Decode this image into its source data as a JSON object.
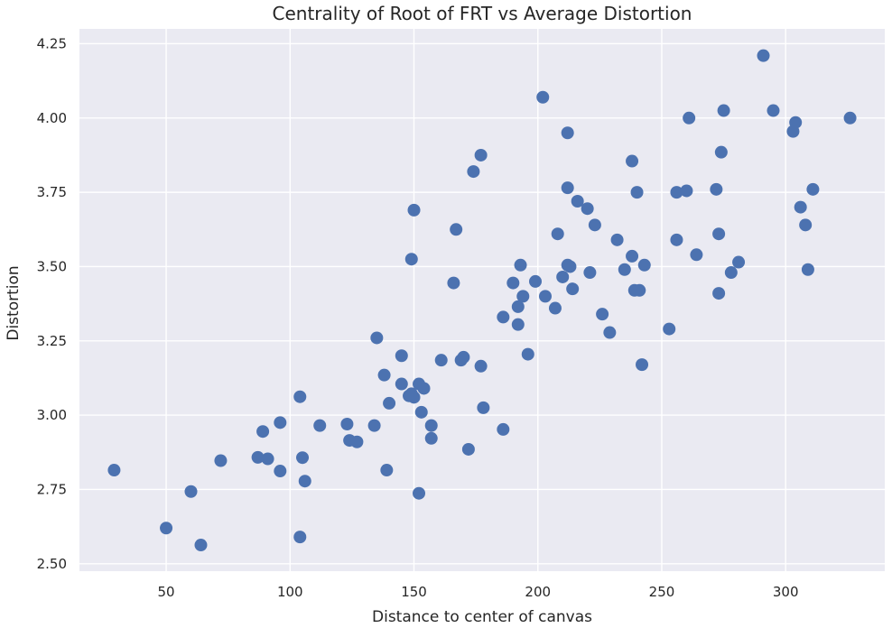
{
  "chart_data": {
    "type": "scatter",
    "title": "Centrality of Root of FRT vs Average Distortion",
    "xlabel": "Distance to center of canvas",
    "ylabel": "Distortion",
    "xlim": [
      15,
      340
    ],
    "ylim": [
      2.475,
      4.3
    ],
    "xticks": [
      50,
      100,
      150,
      200,
      250,
      300
    ],
    "xtick_labels": [
      "50",
      "100",
      "150",
      "200",
      "250",
      "300"
    ],
    "yticks": [
      2.5,
      2.75,
      3.0,
      3.25,
      3.5,
      3.75,
      4.0,
      4.25
    ],
    "ytick_labels": [
      "2.50",
      "2.75",
      "3.00",
      "3.25",
      "3.50",
      "3.75",
      "4.00",
      "4.25"
    ],
    "grid": true,
    "marker_color": "#4C72B0",
    "background_color": "#EAEAF2",
    "grid_color": "#FFFFFF",
    "series": [
      {
        "points": [
          [
            29,
            2.815
          ],
          [
            50,
            2.62
          ],
          [
            60,
            2.743
          ],
          [
            64,
            2.563
          ],
          [
            72,
            2.847
          ],
          [
            87,
            2.858
          ],
          [
            89,
            2.945
          ],
          [
            91,
            2.853
          ],
          [
            96,
            2.975
          ],
          [
            96,
            2.812
          ],
          [
            104,
            3.062
          ],
          [
            104,
            2.59
          ],
          [
            105,
            2.857
          ],
          [
            106,
            2.778
          ],
          [
            112,
            2.965
          ],
          [
            123,
            2.97
          ],
          [
            124,
            2.915
          ],
          [
            127,
            2.91
          ],
          [
            134,
            2.965
          ],
          [
            135,
            3.26
          ],
          [
            138,
            3.135
          ],
          [
            139,
            2.815
          ],
          [
            140,
            3.04
          ],
          [
            145,
            3.105
          ],
          [
            145,
            3.2
          ],
          [
            148,
            3.065
          ],
          [
            149,
            3.072
          ],
          [
            149,
            3.525
          ],
          [
            150,
            3.69
          ],
          [
            150,
            3.06
          ],
          [
            152,
            2.737
          ],
          [
            152,
            3.105
          ],
          [
            153,
            3.01
          ],
          [
            154,
            3.09
          ],
          [
            157,
            2.922
          ],
          [
            157,
            2.965
          ],
          [
            161,
            3.185
          ],
          [
            166,
            3.445
          ],
          [
            167,
            3.625
          ],
          [
            169,
            3.185
          ],
          [
            170,
            3.195
          ],
          [
            172,
            2.885
          ],
          [
            174,
            3.82
          ],
          [
            177,
            3.875
          ],
          [
            177,
            3.165
          ],
          [
            178,
            3.025
          ],
          [
            186,
            3.33
          ],
          [
            186,
            2.952
          ],
          [
            190,
            3.445
          ],
          [
            192,
            3.365
          ],
          [
            192,
            3.305
          ],
          [
            193,
            3.505
          ],
          [
            194,
            3.4
          ],
          [
            196,
            3.205
          ],
          [
            199,
            3.45
          ],
          [
            202,
            4.07
          ],
          [
            203,
            3.4
          ],
          [
            207,
            3.36
          ],
          [
            208,
            3.61
          ],
          [
            210,
            3.465
          ],
          [
            212,
            3.765
          ],
          [
            212,
            3.505
          ],
          [
            212,
            3.95
          ],
          [
            213,
            3.5
          ],
          [
            214,
            3.425
          ],
          [
            216,
            3.72
          ],
          [
            220,
            3.695
          ],
          [
            221,
            3.48
          ],
          [
            223,
            3.64
          ],
          [
            226,
            3.34
          ],
          [
            229,
            3.278
          ],
          [
            232,
            3.59
          ],
          [
            235,
            3.49
          ],
          [
            238,
            3.855
          ],
          [
            238,
            3.535
          ],
          [
            239,
            3.42
          ],
          [
            240,
            3.75
          ],
          [
            241,
            3.42
          ],
          [
            242,
            3.17
          ],
          [
            243,
            3.505
          ],
          [
            253,
            3.29
          ],
          [
            256,
            3.75
          ],
          [
            256,
            3.59
          ],
          [
            260,
            3.755
          ],
          [
            261,
            4.0
          ],
          [
            264,
            3.54
          ],
          [
            272,
            3.76
          ],
          [
            273,
            3.61
          ],
          [
            273,
            3.41
          ],
          [
            274,
            3.885
          ],
          [
            275,
            4.025
          ],
          [
            278,
            3.48
          ],
          [
            281,
            3.515
          ],
          [
            291,
            4.21
          ],
          [
            295,
            4.025
          ],
          [
            303,
            3.955
          ],
          [
            304,
            3.985
          ],
          [
            306,
            3.7
          ],
          [
            308,
            3.64
          ],
          [
            309,
            3.49
          ],
          [
            311,
            3.76
          ],
          [
            326,
            4.0
          ]
        ]
      }
    ]
  }
}
